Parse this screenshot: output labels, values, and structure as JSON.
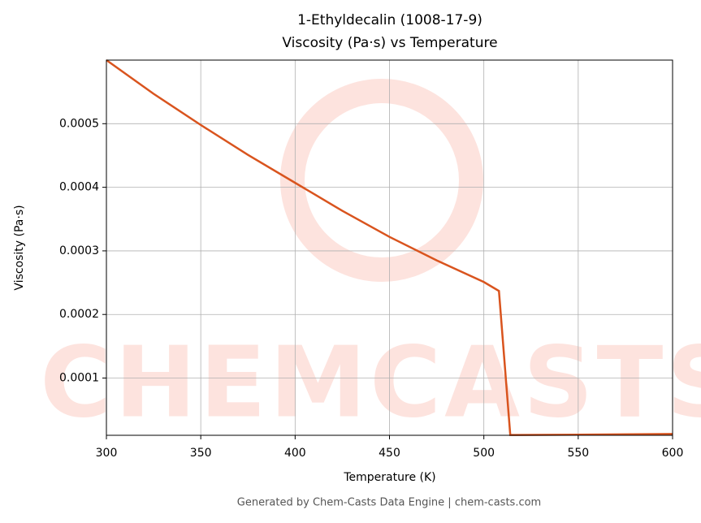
{
  "chart_data": {
    "type": "line",
    "title": "1-Ethyldecalin (1008-17-9)",
    "subtitle": "Viscosity (Pa·s) vs Temperature",
    "x_label": "Temperature (K)",
    "y_label": "Viscosity (Pa·s)",
    "watermark": "CHEMCASTS",
    "footer": "Generated by Chem-Casts Data Engine | chem-casts.com",
    "x": [
      300,
      325,
      350,
      375,
      400,
      425,
      450,
      475,
      500,
      508,
      514,
      550,
      600
    ],
    "series": [
      {
        "name": "Viscosity",
        "color": "#d9541e",
        "values": [
          0.0006,
          0.000547,
          0.000498,
          0.000451,
          0.000407,
          0.000363,
          0.000322,
          0.000285,
          0.000251,
          0.000237,
          1.05e-05,
          1.1e-05,
          1.2e-05
        ]
      }
    ],
    "xlim": [
      300,
      600
    ],
    "ylim": [
      1e-05,
      0.0006
    ],
    "xticks": [
      300,
      350,
      400,
      450,
      500,
      550,
      600
    ],
    "yticks": [
      0.0001,
      0.0002,
      0.0003,
      0.0004,
      0.0005
    ],
    "grid": true
  }
}
